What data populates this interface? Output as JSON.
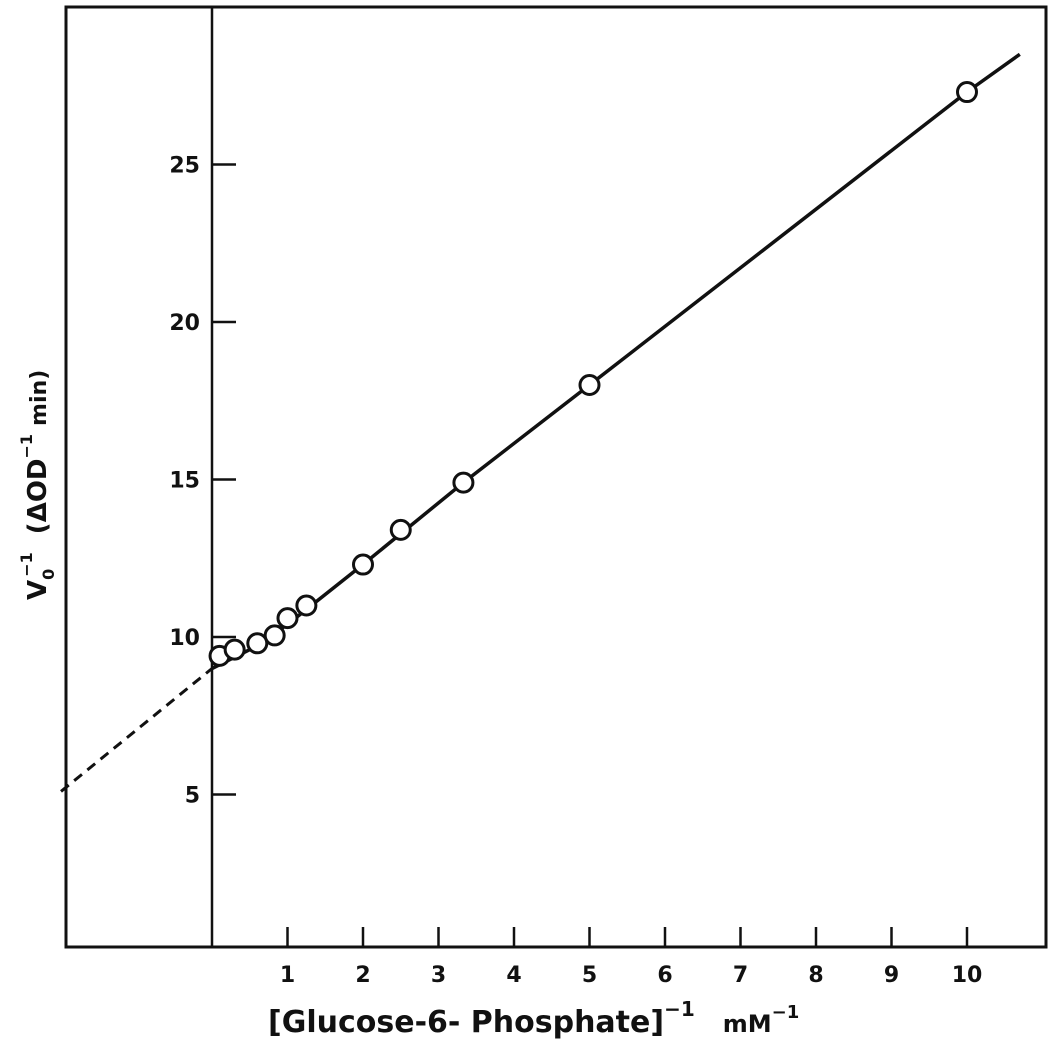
{
  "chart_data": {
    "type": "scatter",
    "title": "",
    "xlabel": "[Glucose-6- Phosphate]",
    "xlabel_sup": "−1",
    "xunit": "mM",
    "xunit_sup": "−1",
    "ylabel_main": "V",
    "ylabel_sub": "0",
    "ylabel_sup": "−1",
    "ylabel_unit": "(ΔOD",
    "ylabel_unit_sup": "−1",
    "ylabel_unit_end": "min)",
    "xlim": [
      -2,
      11.2
    ],
    "ylim": [
      0,
      30
    ],
    "x_ticks": [
      1,
      2,
      3,
      4,
      5,
      6,
      7,
      8,
      9,
      10
    ],
    "x_tick_labels": [
      "1",
      "2",
      "3",
      "4",
      "5",
      "6",
      "7",
      "8",
      "9",
      "10"
    ],
    "y_ticks": [
      5,
      10,
      15,
      20,
      25
    ],
    "y_tick_labels": [
      "5",
      "10",
      "15",
      "20",
      "25"
    ],
    "axis_scale": "x axis: 1–5 spaced ~75px per unit, 5–10 spaced ~75px per unit (uniform)",
    "grid": false,
    "legend": "none",
    "series": [
      {
        "values": [
          {
            "x": 0.1,
            "y": 9.4
          },
          {
            "x": 0.3,
            "y": 9.6
          },
          {
            "x": 0.6,
            "y": 9.8
          },
          {
            "x": 0.83,
            "y": 10.05
          },
          {
            "x": 1.0,
            "y": 10.6
          },
          {
            "x": 1.25,
            "y": 11.0
          },
          {
            "x": 2.0,
            "y": 12.3
          },
          {
            "x": 2.5,
            "y": 13.4
          },
          {
            "x": 3.33,
            "y": 14.9
          },
          {
            "x": 5.0,
            "y": 18.0
          },
          {
            "x": 10.0,
            "y": 27.3
          }
        ]
      }
    ],
    "fit_line": [
      {
        "x": 0.0,
        "y": 9.0
      },
      {
        "x": 0.5,
        "y": 9.6
      },
      {
        "x": 1.0,
        "y": 10.4
      },
      {
        "x": 2.0,
        "y": 12.3
      },
      {
        "x": 3.33,
        "y": 14.9
      },
      {
        "x": 5.0,
        "y": 18.0
      },
      {
        "x": 10.0,
        "y": 27.3
      },
      {
        "x": 10.7,
        "y": 28.5
      }
    ],
    "extrapolation": [
      {
        "x": -2.0,
        "y": 5.1
      },
      {
        "x": 0.0,
        "y": 9.0
      }
    ]
  }
}
